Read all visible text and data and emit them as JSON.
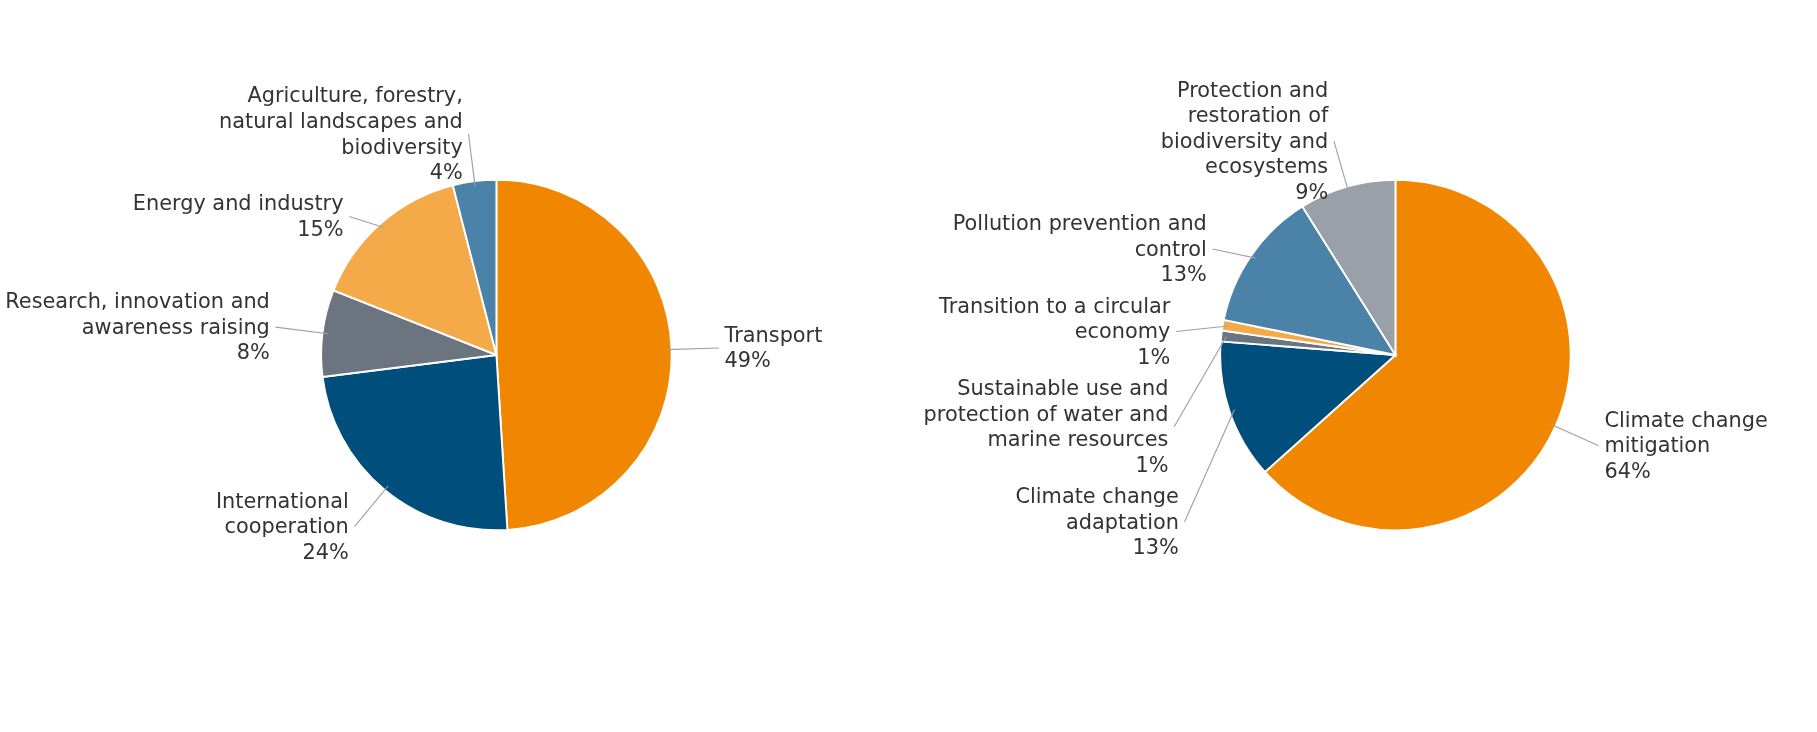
{
  "chart_data": [
    {
      "type": "pie",
      "categories": [
        "Transport",
        "International cooperation",
        "Research, innovation and awareness raising",
        "Energy and industry",
        "Agriculture, forestry, natural landscapes and biodiversity"
      ],
      "values": [
        49,
        24,
        8,
        15,
        4
      ],
      "value_labels": [
        "49%",
        "24%",
        "8%",
        "15%",
        "4%"
      ],
      "colors": [
        "#f18700",
        "#004e7c",
        "#6c7480",
        "#f5aa4a",
        "#4a82a8"
      ]
    },
    {
      "type": "pie",
      "categories": [
        "Climate change mitigation",
        "Climate change adaptation",
        "Sustainable use and protection of water and marine resources",
        "Transition to a circular economy",
        "Pollution prevention and control",
        "Protection and restoration of biodiversity and ecosystems"
      ],
      "values": [
        64,
        13,
        1,
        1,
        13,
        9
      ],
      "value_labels": [
        "64%",
        "13%",
        "1%",
        "1%",
        "13%",
        "9%"
      ],
      "colors": [
        "#f18700",
        "#004e7c",
        "#6c7480",
        "#f5aa4a",
        "#4a82a8",
        "#9aa0a8"
      ]
    }
  ]
}
